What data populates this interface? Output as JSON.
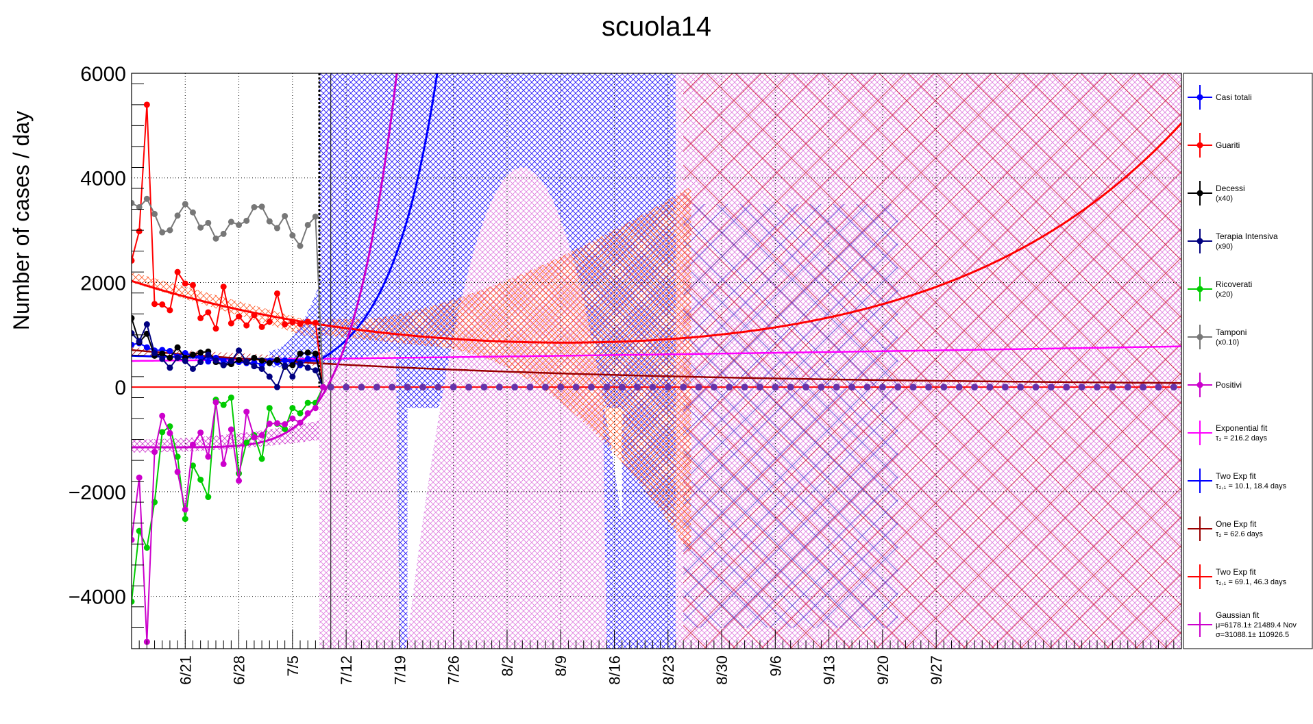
{
  "chart_data": {
    "type": "line",
    "title": "scuola14",
    "xlabel": "",
    "ylabel": "Number of cases / day",
    "ylim": [
      -5000,
      6000
    ],
    "yticks": [
      -4000,
      -2000,
      0,
      2000,
      4000,
      6000
    ],
    "ytick_labels": [
      "−4000",
      "−2000",
      "0",
      "2000",
      "4000",
      "6000"
    ],
    "xlim": [
      0,
      137
    ],
    "x_tick_labels": [
      "6/21",
      "6/28",
      "7/5",
      "7/12",
      "7/19",
      "7/26",
      "8/2",
      "8/9",
      "8/16",
      "8/23",
      "8/30",
      "9/6",
      "9/13",
      "9/20",
      "9/27"
    ],
    "x_tick_days": [
      7,
      14,
      21,
      28,
      35,
      42,
      49,
      56,
      63,
      70,
      77,
      84,
      91,
      98,
      105
    ],
    "fit_cut_day": 24.5,
    "grid": true,
    "legend_position": "right",
    "series": [
      {
        "name": "Casi totali",
        "color": "#0000ff",
        "values": [
          810,
          840,
          760,
          700,
          710,
          690,
          580,
          650,
          600,
          580,
          490,
          560,
          500,
          460,
          480,
          460,
          470,
          430,
          500,
          470,
          510,
          470,
          420,
          540,
          600,
          0
        ]
      },
      {
        "name": "Guariti",
        "color": "#ff0000",
        "values": [
          2420,
          2980,
          5400,
          1590,
          1580,
          1470,
          2200,
          1980,
          1950,
          1320,
          1430,
          1120,
          1920,
          1220,
          1350,
          1180,
          1380,
          1150,
          1250,
          1790,
          1200,
          1240,
          1210,
          1250,
          1230,
          0
        ]
      },
      {
        "name": "Decessi",
        "name2": "(x40)",
        "color": "#000000",
        "values": [
          1320,
          860,
          1020,
          600,
          640,
          560,
          760,
          560,
          620,
          660,
          680,
          480,
          420,
          440,
          520,
          480,
          560,
          510,
          460,
          520,
          390,
          420,
          640,
          660,
          640,
          0
        ]
      },
      {
        "name": "Terapia Intensiva",
        "name2": "(x90)",
        "color": "#000080",
        "values": [
          1030,
          880,
          1200,
          650,
          540,
          370,
          560,
          500,
          350,
          480,
          620,
          510,
          420,
          500,
          700,
          490,
          400,
          350,
          200,
          0,
          410,
          200,
          450,
          370,
          320,
          0
        ]
      },
      {
        "name": "Ricoverati",
        "name2": "(x20)",
        "color": "#00cc00",
        "values": [
          -4100,
          -2750,
          -3070,
          -2200,
          -860,
          -750,
          -1330,
          -2520,
          -1500,
          -1770,
          -2100,
          -240,
          -340,
          -200,
          -1650,
          -1060,
          -920,
          -1370,
          -400,
          -700,
          -800,
          -400,
          -500,
          -300,
          -300,
          0
        ]
      },
      {
        "name": "Tamponi",
        "name2": "(x0.10)",
        "color": "#777777",
        "values": [
          3520,
          3440,
          3600,
          3310,
          2960,
          3000,
          3280,
          3500,
          3340,
          3050,
          3140,
          2840,
          2930,
          3160,
          3100,
          3180,
          3440,
          3450,
          3170,
          3040,
          3270,
          2900,
          2700,
          3100,
          3260,
          0
        ]
      },
      {
        "name": "Positivi",
        "color": "#cc00cc",
        "values": [
          -2920,
          -1730,
          -4870,
          -1240,
          -550,
          -880,
          -1620,
          -2340,
          -1100,
          -870,
          -1330,
          -290,
          -1470,
          -810,
          -1790,
          -470,
          -960,
          -920,
          -700,
          -690,
          -710,
          -600,
          -680,
          -500,
          -400,
          0
        ]
      }
    ],
    "fits": [
      {
        "name": "Exponential fit",
        "label2": "τ₂ = 216.2 days",
        "color": "#ff00ff"
      },
      {
        "name": "Two Exp fit",
        "label2": "τ₂,₁ = 10.1, 18.4 days",
        "color": "#0000ff"
      },
      {
        "name": "One Exp fit",
        "label2": "τ₂ = 62.6 days",
        "color": "#990000"
      },
      {
        "name": "Two Exp fit",
        "label2": "τ₂,₁ = 69.1, 46.3 days",
        "color": "#ff0000"
      },
      {
        "name": "Gaussian fit",
        "label2": "μ=6178.1± 21489.4 Nov",
        "label3": "σ=31088.1± 110926.5",
        "color": "#cc00cc"
      }
    ]
  }
}
